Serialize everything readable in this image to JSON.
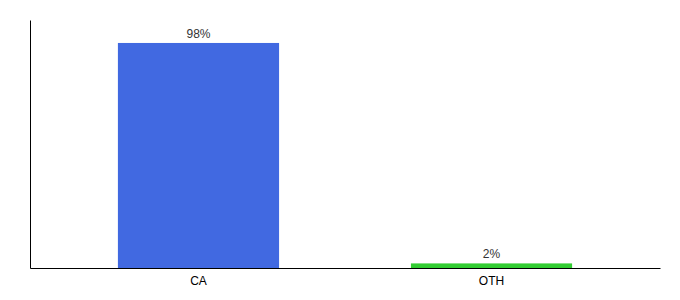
{
  "chart_data": {
    "type": "bar",
    "categories": [
      "CA",
      "OTH"
    ],
    "values": [
      98,
      2
    ],
    "value_labels": [
      "98%",
      "2%"
    ],
    "colors": [
      "#4169e1",
      "#32cd32"
    ],
    "ylim": [
      0,
      108
    ],
    "data_labels": true,
    "tick_labels": "x"
  }
}
